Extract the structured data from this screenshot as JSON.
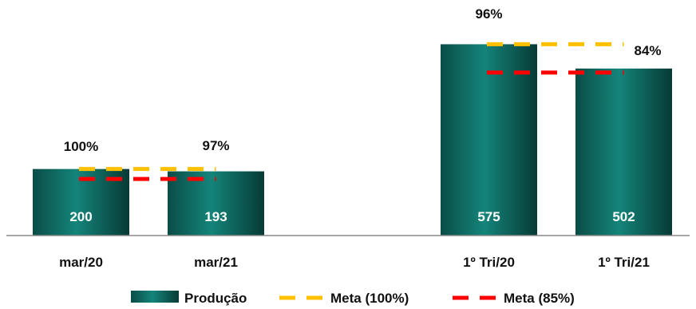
{
  "chart_data": {
    "type": "bar",
    "categories": [
      "mar/20",
      "mar/21",
      "1º Tri/20",
      "1º Tri/21"
    ],
    "series": [
      {
        "name": "Produção",
        "values": [
          200,
          193,
          575,
          502
        ],
        "value_labels": [
          "200",
          "193",
          "575",
          "502"
        ]
      }
    ],
    "percent_labels": [
      "100%",
      "97%",
      "96%",
      "84%"
    ],
    "meta_lines": [
      {
        "name": "Meta (100%)",
        "color": "#FFC000",
        "values": [
          200,
          200,
          575,
          575
        ]
      },
      {
        "name": "Meta (85%)",
        "color": "#FF0000",
        "values": [
          170,
          170,
          490,
          490
        ]
      }
    ],
    "bar_color": "#0E6F67",
    "grid": false,
    "legend_position": "bottom"
  }
}
